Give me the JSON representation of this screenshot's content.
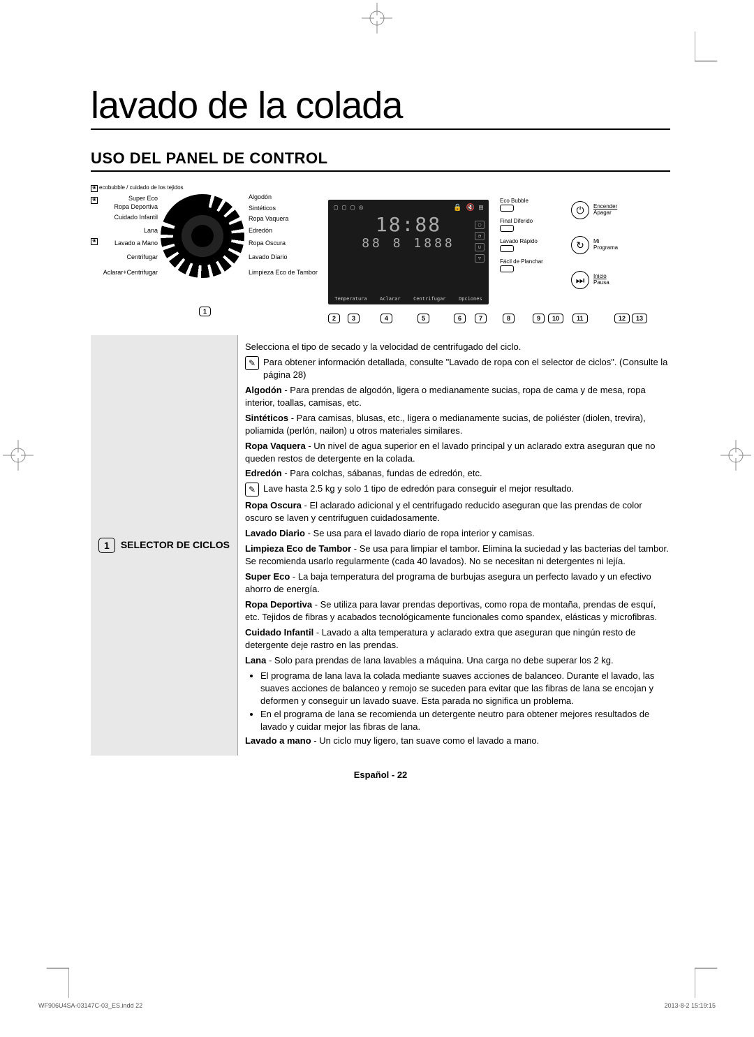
{
  "title": "lavado de la colada",
  "section": "USO DEL PANEL DE CONTROL",
  "dial_header": "ecobubble / cuidado de los tejidos",
  "dial_left": [
    "Super Eco",
    "Ropa Deportiva",
    "Cuidado Infantil",
    "Lana",
    "Lavado a Mano",
    "Centrifugar",
    "Aclarar+Centrifugar"
  ],
  "dial_right": [
    "Algodón",
    "Sintéticos",
    "Ropa Vaquera",
    "Edredón",
    "Ropa Oscura",
    "Lavado Diario",
    "Limpieza Eco de Tambor"
  ],
  "callouts": [
    "1",
    "2",
    "3",
    "4",
    "5",
    "6",
    "7",
    "8",
    "9",
    "10",
    "11",
    "12",
    "13"
  ],
  "display_time": "18:88",
  "display_sub": "88  8  1888",
  "display_buttons": [
    "Temperatura",
    "Aclarar",
    "Centrifugar",
    "Opciones"
  ],
  "options_col": [
    {
      "label": "Eco Bubble"
    },
    {
      "label": "Final Diferido"
    },
    {
      "label": "Lavado Rápido"
    },
    {
      "label": "Fácil de Planchar"
    }
  ],
  "power": {
    "top": "Encender",
    "bot": "Apagar"
  },
  "myprog": {
    "top": "Mi",
    "bot": "Programa"
  },
  "start": {
    "top": "Inicio",
    "bot": "Pausa"
  },
  "section1": {
    "num": "1",
    "title": "SELECTOR DE CICLOS",
    "intro": "Selecciona el tipo de secado y la velocidad de centrifugado del ciclo.",
    "note1": "Para obtener información detallada, consulte \"Lavado de ropa con el selector de ciclos\". (Consulte la página 28)",
    "items": [
      {
        "term": "Algodón",
        "text": " - Para prendas de algodón, ligera o medianamente sucias, ropa de cama y de mesa, ropa interior, toallas, camisas, etc."
      },
      {
        "term": "Sintéticos",
        "text": " - Para camisas, blusas, etc., ligera o medianamente sucias, de poliéster (diolen, trevira), poliamida (perlón, nailon) u otros materiales similares."
      },
      {
        "term": "Ropa Vaquera",
        "text": " - Un nivel de agua superior en el lavado principal y un aclarado extra aseguran que no queden restos de detergente en la colada."
      },
      {
        "term": "Edredón",
        "text": " - Para colchas, sábanas, fundas de edredón, etc."
      }
    ],
    "note2": "Lave hasta 2.5 kg y solo 1 tipo de edredón para conseguir el mejor resultado.",
    "items2": [
      {
        "term": "Ropa Oscura",
        "text": " - El aclarado adicional y el centrifugado reducido aseguran que las prendas de color oscuro se laven y centrifuguen cuidadosamente."
      },
      {
        "term": "Lavado Diario",
        "text": " - Se usa para el lavado diario de ropa interior y camisas."
      },
      {
        "term": "Limpieza Eco de Tambor",
        "text": " - Se usa para limpiar el tambor. Elimina la suciedad y las bacterias del tambor. Se recomienda usarlo regularmente (cada 40 lavados). No se necesitan ni detergentes ni lejía."
      },
      {
        "term": "Super Eco",
        "text": " - La baja temperatura del programa de burbujas asegura un perfecto lavado y un efectivo ahorro de energía."
      },
      {
        "term": "Ropa Deportiva",
        "text": " - Se utiliza para lavar prendas deportivas, como ropa de montaña, prendas de esquí, etc. Tejidos de fibras y acabados tecnológicamente funcionales como spandex, elásticas y microfibras."
      },
      {
        "term": "Cuidado Infantil",
        "text": " - Lavado a alta temperatura y aclarado extra que aseguran que ningún resto de detergente deje rastro en las prendas."
      },
      {
        "term": "Lana",
        "text": " - Solo para prendas de lana lavables a máquina. Una carga no debe superar los 2 kg."
      }
    ],
    "bullets": [
      "El programa de lana lava la colada mediante suaves acciones de balanceo. Durante el lavado, las suaves acciones de balanceo y remojo se suceden para evitar que las fibras de lana se encojan y deformen y conseguir un lavado suave.  Esta parada no significa un problema.",
      "En el programa de lana se recomienda un detergente neutro para obtener mejores resultados de lavado y cuidar mejor las fibras de lana."
    ],
    "last": {
      "term": "Lavado a mano",
      "text": " - Un ciclo muy ligero, tan suave como el lavado a mano."
    }
  },
  "footer": {
    "lang": "Español - ",
    "page": "22",
    "file": "WF906U4SA-03147C-03_ES.indd   22",
    "date": "2013-8-2   15:19:15"
  }
}
